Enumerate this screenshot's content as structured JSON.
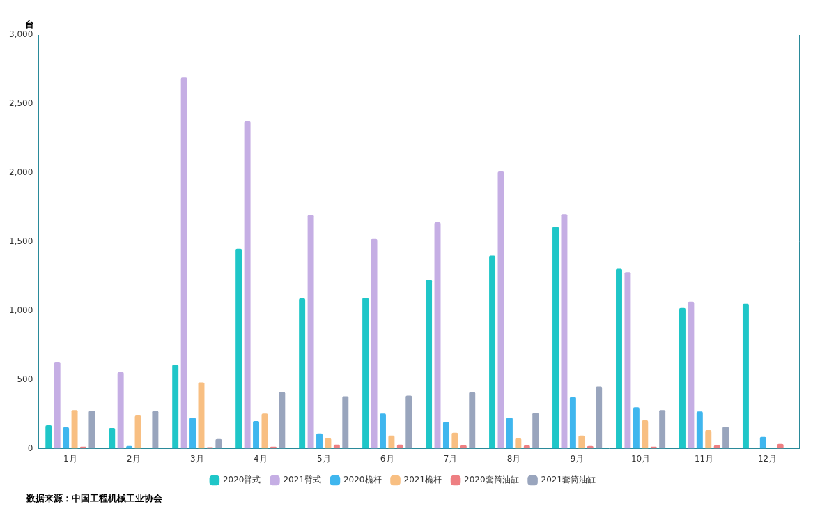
{
  "chart_data": {
    "type": "bar",
    "y_label": "台",
    "source": "数据来源：中国工程机械工业协会",
    "categories": [
      "1月",
      "2月",
      "3月",
      "4月",
      "5月",
      "6月",
      "7月",
      "8月",
      "9月",
      "10月",
      "11月",
      "12月"
    ],
    "series": [
      {
        "name": "2020臂式",
        "color": "#1fc6c8",
        "values": [
          170,
          150,
          610,
          1450,
          1090,
          1095,
          1225,
          1400,
          1610,
          1305,
          1020,
          1050
        ]
      },
      {
        "name": "2021臂式",
        "color": "#c5aee4",
        "values": [
          630,
          555,
          2690,
          2375,
          1695,
          1520,
          1640,
          2010,
          1700,
          1280,
          1065,
          null
        ]
      },
      {
        "name": "2020桅杆",
        "color": "#3fb6ee",
        "values": [
          155,
          20,
          225,
          200,
          110,
          255,
          195,
          225,
          375,
          300,
          270,
          85
        ]
      },
      {
        "name": "2021桅杆",
        "color": "#f8bf82",
        "values": [
          280,
          240,
          480,
          255,
          75,
          95,
          115,
          75,
          95,
          205,
          135,
          null
        ]
      },
      {
        "name": "2020套筒油缸",
        "color": "#ee7f82",
        "values": [
          15,
          0,
          10,
          15,
          30,
          30,
          25,
          25,
          20,
          15,
          25,
          35
        ]
      },
      {
        "name": "2021套筒油缸",
        "color": "#99a5bd",
        "values": [
          275,
          275,
          70,
          410,
          380,
          385,
          410,
          260,
          450,
          280,
          160,
          null
        ]
      }
    ],
    "ylim": [
      0,
      3000
    ],
    "yticks": [
      0,
      500,
      {
        "value": 1000,
        "label": "1,000"
      },
      {
        "value": 1500,
        "label": "1,500"
      },
      {
        "value": 2000,
        "label": "2,000"
      },
      {
        "value": 2500,
        "label": "2,500"
      },
      {
        "value": 3000,
        "label": "3,000"
      }
    ],
    "grid": false,
    "legend": "bottom"
  }
}
